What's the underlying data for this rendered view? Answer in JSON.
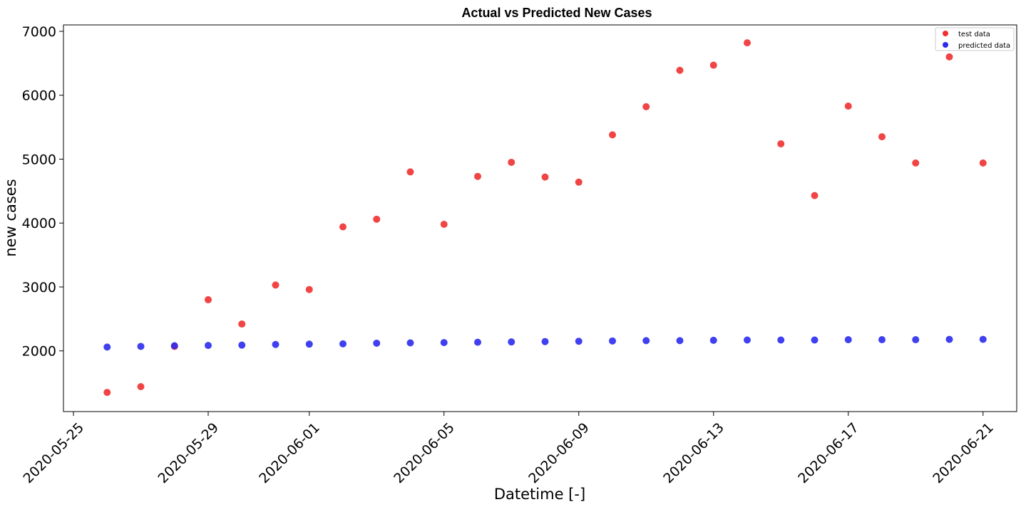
{
  "chart_data": {
    "type": "scatter",
    "title": "Actual vs Predicted New Cases",
    "xlabel": "Datetime [-]",
    "ylabel": "new cases",
    "xlim": [
      "2020-05-25",
      "2020-06-22"
    ],
    "ylim": [
      1050,
      7100
    ],
    "x_ticks": [
      "2020-05-25",
      "2020-05-29",
      "2020-06-01",
      "2020-06-05",
      "2020-06-09",
      "2020-06-13",
      "2020-06-17",
      "2020-06-21"
    ],
    "y_ticks": [
      2000,
      3000,
      4000,
      5000,
      6000,
      7000
    ],
    "grid": false,
    "legend_position": "top-right",
    "x": [
      "2020-05-26",
      "2020-05-27",
      "2020-05-28",
      "2020-05-29",
      "2020-05-30",
      "2020-05-31",
      "2020-06-01",
      "2020-06-02",
      "2020-06-03",
      "2020-06-04",
      "2020-06-05",
      "2020-06-06",
      "2020-06-07",
      "2020-06-08",
      "2020-06-09",
      "2020-06-10",
      "2020-06-11",
      "2020-06-12",
      "2020-06-13",
      "2020-06-14",
      "2020-06-15",
      "2020-06-16",
      "2020-06-17",
      "2020-06-18",
      "2020-06-19",
      "2020-06-20",
      "2020-06-21"
    ],
    "series": [
      {
        "name": "test data",
        "color": "#f03030",
        "values": [
          1350,
          1440,
          2070,
          2800,
          2420,
          3030,
          2960,
          3940,
          4060,
          4800,
          3980,
          4730,
          4950,
          4720,
          4640,
          5380,
          5820,
          6390,
          6470,
          6820,
          5240,
          4430,
          5830,
          5350,
          4940,
          6600,
          4940
        ]
      },
      {
        "name": "predicted data",
        "color": "#2b2bf0",
        "values": [
          2060,
          2070,
          2080,
          2085,
          2090,
          2100,
          2105,
          2110,
          2120,
          2125,
          2130,
          2135,
          2140,
          2145,
          2150,
          2155,
          2160,
          2160,
          2165,
          2170,
          2170,
          2170,
          2175,
          2175,
          2175,
          2180,
          2180
        ]
      }
    ]
  }
}
